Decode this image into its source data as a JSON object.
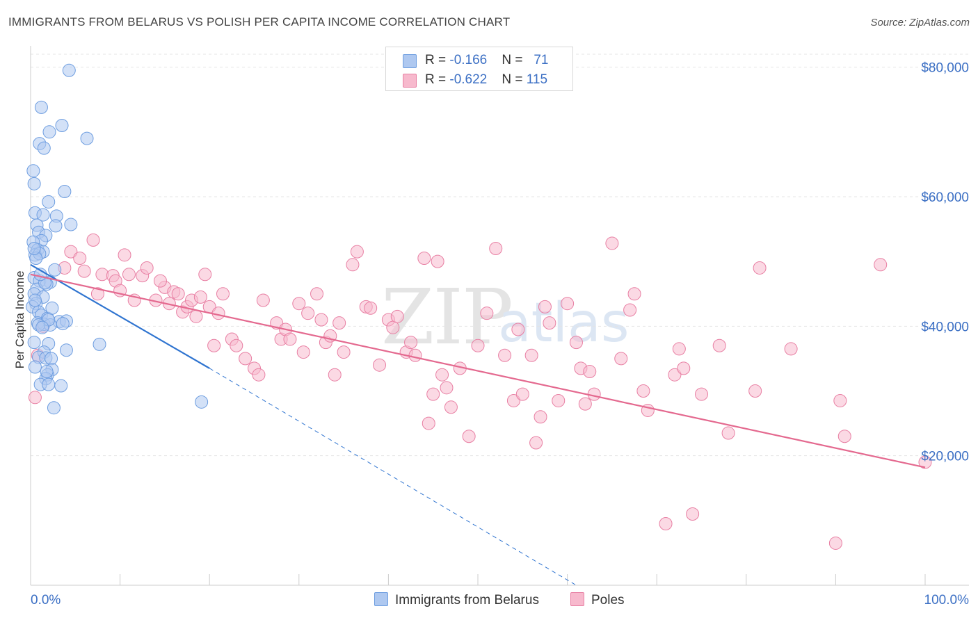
{
  "title": "IMMIGRANTS FROM BELARUS VS POLISH PER CAPITA INCOME CORRELATION CHART",
  "source": "Source: ZipAtlas.com",
  "watermark": {
    "zip": "ZIP",
    "atlas": "atlas"
  },
  "legend": {
    "rows": [
      {
        "r_label": "R = ",
        "r_value": "-0.166",
        "n_label": "N = ",
        "n_value": "71",
        "color": "#aec8f0",
        "stroke": "#6d9de0"
      },
      {
        "r_label": "R = ",
        "r_value": "-0.622",
        "n_label": "N = ",
        "n_value": "115",
        "color": "#f7b9cd",
        "stroke": "#e87fa3"
      }
    ]
  },
  "bottom_legend": [
    {
      "label": "Immigrants from Belarus",
      "color": "#aec8f0",
      "stroke": "#6d9de0"
    },
    {
      "label": "Poles",
      "color": "#f7b9cd",
      "stroke": "#e87fa3"
    }
  ],
  "chart_data": {
    "type": "scatter",
    "title": "IMMIGRANTS FROM BELARUS VS POLISH PER CAPITA INCOME CORRELATION CHART",
    "xlabel": "",
    "ylabel": "Per Capita Income",
    "xlim": [
      0,
      100
    ],
    "ylim": [
      0,
      82000
    ],
    "x_tick_labels": [
      "0.0%",
      "100.0%"
    ],
    "y_ticks": [
      20000,
      40000,
      60000,
      80000
    ],
    "y_tick_labels": [
      "$20,000",
      "$40,000",
      "$60,000",
      "$80,000"
    ],
    "grid": true,
    "series": [
      {
        "name": "Immigrants from Belarus",
        "color": "#6d9de0",
        "fill": "#aec8f0",
        "line_color": "#2f74d0",
        "trend": {
          "x": [
            0,
            20
          ],
          "y": [
            49500,
            33500
          ]
        },
        "trend_extension": {
          "x": [
            20,
            61
          ],
          "y": [
            33500,
            0
          ]
        },
        "points": [
          [
            4.3,
            79500
          ],
          [
            1.2,
            73800
          ],
          [
            3.5,
            71000
          ],
          [
            2.1,
            70000
          ],
          [
            6.3,
            69000
          ],
          [
            1.0,
            68200
          ],
          [
            1.5,
            67500
          ],
          [
            0.3,
            64000
          ],
          [
            0.4,
            62000
          ],
          [
            3.8,
            60800
          ],
          [
            2.0,
            59200
          ],
          [
            0.5,
            57500
          ],
          [
            1.4,
            57200
          ],
          [
            2.9,
            57000
          ],
          [
            0.7,
            55600
          ],
          [
            2.8,
            55500
          ],
          [
            4.5,
            55700
          ],
          [
            0.9,
            54500
          ],
          [
            1.7,
            54000
          ],
          [
            1.2,
            53200
          ],
          [
            0.3,
            53000
          ],
          [
            0.8,
            51800
          ],
          [
            1.4,
            51500
          ],
          [
            0.5,
            51000
          ],
          [
            1.0,
            51200
          ],
          [
            0.6,
            50500
          ],
          [
            2.7,
            48700
          ],
          [
            0.4,
            47500
          ],
          [
            1.0,
            47000
          ],
          [
            2.2,
            46800
          ],
          [
            1.8,
            46500
          ],
          [
            0.7,
            45700
          ],
          [
            0.4,
            45000
          ],
          [
            1.4,
            44500
          ],
          [
            0.6,
            43500
          ],
          [
            0.2,
            43000
          ],
          [
            0.9,
            42200
          ],
          [
            1.2,
            41700
          ],
          [
            1.9,
            41200
          ],
          [
            3.2,
            40700
          ],
          [
            4.0,
            40800
          ],
          [
            0.8,
            40500
          ],
          [
            1.5,
            40300
          ],
          [
            2.2,
            40200
          ],
          [
            3.6,
            40400
          ],
          [
            0.4,
            37500
          ],
          [
            2.0,
            37300
          ],
          [
            7.7,
            37200
          ],
          [
            4.0,
            36300
          ],
          [
            1.5,
            36000
          ],
          [
            0.9,
            35200
          ],
          [
            1.7,
            35100
          ],
          [
            2.3,
            35000
          ],
          [
            0.5,
            33700
          ],
          [
            2.4,
            33300
          ],
          [
            1.9,
            32500
          ],
          [
            1.7,
            31900
          ],
          [
            1.1,
            31000
          ],
          [
            2.0,
            31000
          ],
          [
            3.4,
            30800
          ],
          [
            2.6,
            27400
          ],
          [
            19.1,
            28300
          ],
          [
            0.4,
            52000
          ],
          [
            1.6,
            46700
          ],
          [
            2.0,
            41000
          ],
          [
            0.9,
            40200
          ],
          [
            1.3,
            39800
          ],
          [
            2.4,
            42800
          ],
          [
            1.8,
            33000
          ],
          [
            1.1,
            48000
          ],
          [
            0.5,
            44000
          ]
        ]
      },
      {
        "name": "Poles",
        "color": "#e87fa3",
        "fill": "#f7b9cd",
        "line_color": "#e4698f",
        "trend": {
          "x": [
            0,
            100
          ],
          "y": [
            48000,
            18200
          ]
        },
        "points": [
          [
            0.5,
            29000
          ],
          [
            0.8,
            35500
          ],
          [
            1.4,
            40000
          ],
          [
            3.8,
            49000
          ],
          [
            4.5,
            51500
          ],
          [
            5.5,
            50500
          ],
          [
            7.0,
            53300
          ],
          [
            8.0,
            48000
          ],
          [
            7.5,
            45000
          ],
          [
            9.2,
            47800
          ],
          [
            9.5,
            47000
          ],
          [
            10.0,
            45500
          ],
          [
            10.5,
            51000
          ],
          [
            11.0,
            48000
          ],
          [
            12.5,
            47800
          ],
          [
            13.0,
            49000
          ],
          [
            11.6,
            44000
          ],
          [
            14.0,
            44000
          ],
          [
            15.0,
            46000
          ],
          [
            15.5,
            43500
          ],
          [
            16.0,
            45300
          ],
          [
            16.5,
            45000
          ],
          [
            17.0,
            42200
          ],
          [
            17.5,
            43000
          ],
          [
            18.0,
            44000
          ],
          [
            18.5,
            41500
          ],
          [
            19.0,
            44500
          ],
          [
            20.0,
            43000
          ],
          [
            19.5,
            48000
          ],
          [
            21.5,
            45000
          ],
          [
            22.5,
            38000
          ],
          [
            23.0,
            37000
          ],
          [
            24.0,
            35000
          ],
          [
            25.0,
            33500
          ],
          [
            26.0,
            44000
          ],
          [
            27.5,
            40500
          ],
          [
            28.0,
            38000
          ],
          [
            28.5,
            39500
          ],
          [
            30.0,
            43500
          ],
          [
            30.5,
            36000
          ],
          [
            31.0,
            42000
          ],
          [
            32.0,
            45000
          ],
          [
            32.5,
            41000
          ],
          [
            33.0,
            37500
          ],
          [
            33.5,
            38500
          ],
          [
            34.0,
            32500
          ],
          [
            35.0,
            36000
          ],
          [
            36.0,
            49500
          ],
          [
            36.5,
            51500
          ],
          [
            37.5,
            43000
          ],
          [
            38.0,
            42800
          ],
          [
            39.0,
            34000
          ],
          [
            40.0,
            41000
          ],
          [
            40.5,
            39800
          ],
          [
            41.0,
            41500
          ],
          [
            42.0,
            36000
          ],
          [
            42.5,
            37500
          ],
          [
            43.0,
            35500
          ],
          [
            44.0,
            50500
          ],
          [
            45.0,
            29500
          ],
          [
            45.5,
            50000
          ],
          [
            46.0,
            32500
          ],
          [
            47.0,
            27500
          ],
          [
            48.0,
            33500
          ],
          [
            49.0,
            23000
          ],
          [
            50.0,
            37000
          ],
          [
            51.0,
            42000
          ],
          [
            52.0,
            52000
          ],
          [
            53.0,
            35500
          ],
          [
            54.0,
            28500
          ],
          [
            54.5,
            39500
          ],
          [
            55.0,
            29500
          ],
          [
            56.0,
            35500
          ],
          [
            56.5,
            22000
          ],
          [
            57.0,
            26000
          ],
          [
            58.0,
            40500
          ],
          [
            59.0,
            28500
          ],
          [
            60.0,
            43500
          ],
          [
            61.0,
            37500
          ],
          [
            61.5,
            33500
          ],
          [
            62.0,
            28000
          ],
          [
            63.0,
            29500
          ],
          [
            65.0,
            52800
          ],
          [
            66.0,
            35000
          ],
          [
            67.0,
            42500
          ],
          [
            67.5,
            45000
          ],
          [
            68.5,
            30000
          ],
          [
            69.0,
            27000
          ],
          [
            71.0,
            9500
          ],
          [
            72.0,
            32500
          ],
          [
            72.5,
            36500
          ],
          [
            73.0,
            33500
          ],
          [
            74.0,
            11000
          ],
          [
            75.0,
            29500
          ],
          [
            77.0,
            37000
          ],
          [
            78.0,
            23500
          ],
          [
            81.0,
            30000
          ],
          [
            81.5,
            49000
          ],
          [
            85.0,
            36500
          ],
          [
            90.0,
            6500
          ],
          [
            90.5,
            28500
          ],
          [
            91.0,
            23000
          ],
          [
            95.0,
            49500
          ],
          [
            100.0,
            19000
          ],
          [
            25.5,
            32500
          ],
          [
            20.5,
            37000
          ],
          [
            44.5,
            25000
          ],
          [
            29.0,
            38000
          ],
          [
            34.5,
            40500
          ],
          [
            57.5,
            43000
          ],
          [
            62.5,
            33000
          ],
          [
            46.5,
            30500
          ],
          [
            21.0,
            42000
          ],
          [
            14.5,
            47000
          ],
          [
            6.0,
            48500
          ]
        ]
      }
    ]
  }
}
